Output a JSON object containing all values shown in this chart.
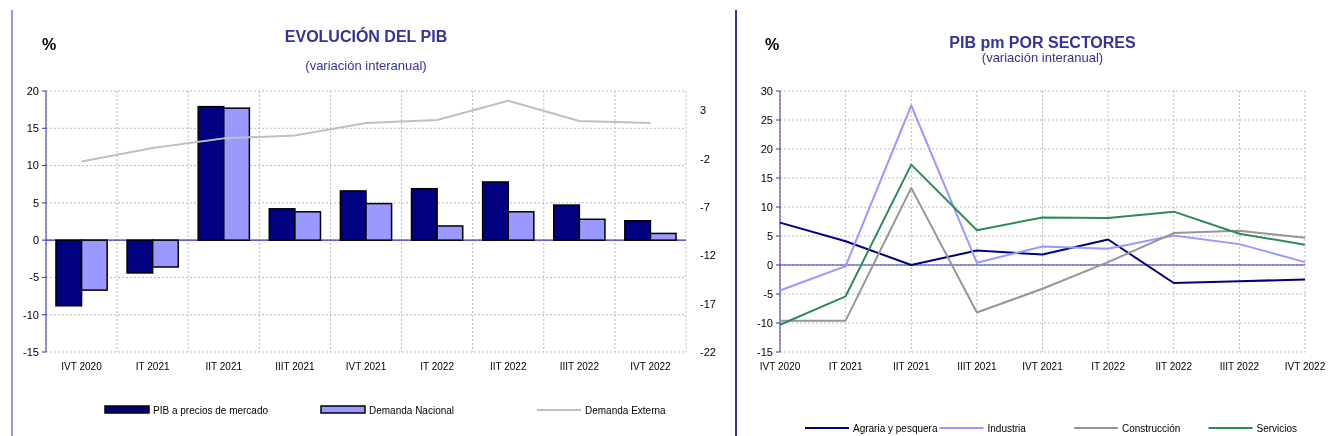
{
  "chart_data": [
    {
      "type": "bar",
      "title": "EVOLUCIÓN DEL PIB",
      "subtitle": "(variación interanual)",
      "ylabel": "%",
      "categories": [
        "IVT 2020",
        "IT 2021",
        "IIT 2021",
        "IIIT 2021",
        "IVT 2021",
        "IT 2022",
        "IIT 2022",
        "IIIT 2022",
        "IVT 2022"
      ],
      "series": [
        {
          "name": "PIB a precios de mercado",
          "color": "#000080",
          "values": [
            -8.8,
            -4.4,
            17.9,
            4.2,
            6.6,
            6.9,
            7.8,
            4.7,
            2.6
          ]
        },
        {
          "name": "Demanda Nacional",
          "color": "#9999ff",
          "values": [
            -6.7,
            -3.6,
            17.7,
            3.8,
            4.9,
            1.9,
            3.8,
            2.8,
            0.9
          ]
        },
        {
          "name": "Demanda Externa",
          "type": "line",
          "axis": "y2",
          "color": "#c0c0c0",
          "values": [
            -2.3,
            -0.9,
            0.1,
            0.4,
            1.7,
            2.0,
            4.0,
            1.9,
            1.7
          ]
        }
      ],
      "ref_lines": [
        {
          "axis": "y",
          "value": 0,
          "color": "#3333bb"
        }
      ],
      "ylim": [
        -15,
        20
      ],
      "yticks": [
        -15,
        -10,
        -5,
        0,
        5,
        10,
        15,
        20
      ],
      "y2lim": [
        -22,
        5
      ],
      "y2ticks": [
        -22,
        -17,
        -12,
        -7,
        -2,
        3
      ],
      "grid": true,
      "legend": "bottom"
    },
    {
      "type": "line",
      "title": "PIB pm POR SECTORES",
      "subtitle": "(variación interanual)",
      "ylabel": "%",
      "categories": [
        "IVT 2020",
        "IT 2021",
        "IIT 2021",
        "IIIT 2021",
        "IVT 2021",
        "IT 2022",
        "IIT 2022",
        "IIIT 2022",
        "IVT 2022"
      ],
      "series": [
        {
          "name": "Agraria y pesquera",
          "color": "#000080",
          "values": [
            7.3,
            4.1,
            0,
            2.5,
            1.8,
            4.4,
            -3.1,
            -2.8,
            -2.5
          ]
        },
        {
          "name": "Industria",
          "color": "#9999ff",
          "values": [
            -4.4,
            -0.2,
            27.5,
            0.4,
            3.2,
            2.8,
            5.1,
            3.6,
            0.5
          ]
        },
        {
          "name": "Construcción",
          "color": "#969696",
          "values": [
            -9.6,
            -9.6,
            13.3,
            -8.2,
            -4.1,
            0.5,
            5.5,
            5.9,
            4.7
          ]
        },
        {
          "name": "Servicios",
          "color": "#2e8b57",
          "values": [
            -10.3,
            -5.4,
            17.3,
            6.0,
            8.2,
            8.1,
            9.2,
            5.4,
            3.5
          ]
        }
      ],
      "ref_lines": [
        {
          "axis": "y",
          "value": 0,
          "color": "#3333bb"
        }
      ],
      "ylim": [
        -15,
        30
      ],
      "yticks": [
        -15,
        -10,
        -5,
        0,
        5,
        10,
        15,
        20,
        25,
        30
      ],
      "grid": true,
      "legend": "bottom"
    }
  ]
}
